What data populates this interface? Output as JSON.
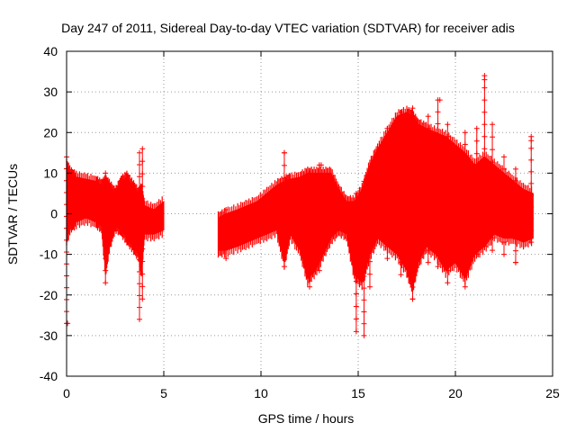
{
  "chart_data": {
    "type": "scatter",
    "title": "Day 247 of 2011, Sidereal Day-to-day VTEC variation (SDTVAR) for receiver adis",
    "xlabel": "GPS time / hours",
    "ylabel": "SDTVAR / TECUs",
    "xlim": [
      0,
      25
    ],
    "ylim": [
      -40,
      40
    ],
    "x_ticks": [
      0,
      5,
      10,
      15,
      20,
      25
    ],
    "y_ticks": [
      -40,
      -30,
      -20,
      -10,
      0,
      10,
      20,
      30,
      40
    ],
    "grid": true,
    "legend": "none",
    "marker": "plus",
    "series_color": "#ff0000",
    "envelope_segments": [
      {
        "name": "segment-1",
        "points": [
          {
            "x": 0.0,
            "lo": -6,
            "hi": 12
          },
          {
            "x": 0.2,
            "lo": -3,
            "hi": 10
          },
          {
            "x": 0.5,
            "lo": -2,
            "hi": 9
          },
          {
            "x": 1.0,
            "lo": -1,
            "hi": 8.5
          },
          {
            "x": 1.5,
            "lo": -2,
            "hi": 8
          },
          {
            "x": 1.8,
            "lo": -3,
            "hi": 7
          },
          {
            "x": 2.0,
            "lo": -14,
            "hi": 8
          },
          {
            "x": 2.2,
            "lo": -8,
            "hi": 7
          },
          {
            "x": 2.5,
            "lo": -3,
            "hi": 5
          },
          {
            "x": 2.8,
            "lo": -4,
            "hi": 8
          },
          {
            "x": 3.1,
            "lo": -6,
            "hi": 9
          },
          {
            "x": 3.4,
            "lo": -8,
            "hi": 7
          },
          {
            "x": 3.7,
            "lo": -10,
            "hi": 5
          },
          {
            "x": 3.85,
            "lo": -14,
            "hi": 6
          },
          {
            "x": 4.0,
            "lo": -5,
            "hi": 2
          },
          {
            "x": 4.5,
            "lo": -5,
            "hi": 1
          },
          {
            "x": 5.0,
            "lo": -4,
            "hi": 3
          }
        ]
      },
      {
        "name": "segment-2",
        "points": [
          {
            "x": 7.8,
            "lo": -9,
            "hi": -1
          },
          {
            "x": 8.2,
            "lo": -9,
            "hi": 0
          },
          {
            "x": 8.8,
            "lo": -8,
            "hi": 1
          },
          {
            "x": 9.3,
            "lo": -7,
            "hi": 2
          },
          {
            "x": 9.8,
            "lo": -6,
            "hi": 3
          },
          {
            "x": 10.3,
            "lo": -5,
            "hi": 5
          },
          {
            "x": 10.8,
            "lo": -4,
            "hi": 7
          },
          {
            "x": 11.2,
            "lo": -12,
            "hi": 8
          },
          {
            "x": 11.5,
            "lo": -5,
            "hi": 8.5
          },
          {
            "x": 12.0,
            "lo": -9,
            "hi": 9
          },
          {
            "x": 12.4,
            "lo": -16,
            "hi": 10
          },
          {
            "x": 12.8,
            "lo": -14,
            "hi": 10
          },
          {
            "x": 13.2,
            "lo": -10,
            "hi": 10
          },
          {
            "x": 13.6,
            "lo": -6,
            "hi": 10
          },
          {
            "x": 14.0,
            "lo": -4,
            "hi": 6
          },
          {
            "x": 14.4,
            "lo": -5,
            "hi": 3
          },
          {
            "x": 14.8,
            "lo": -15,
            "hi": 3
          },
          {
            "x": 15.2,
            "lo": -17,
            "hi": 6
          },
          {
            "x": 15.6,
            "lo": -10,
            "hi": 12
          },
          {
            "x": 16.0,
            "lo": -6,
            "hi": 16
          },
          {
            "x": 16.5,
            "lo": -8,
            "hi": 20
          },
          {
            "x": 17.0,
            "lo": -10,
            "hi": 24
          },
          {
            "x": 17.5,
            "lo": -14,
            "hi": 25
          },
          {
            "x": 17.8,
            "lo": -18,
            "hi": 24
          },
          {
            "x": 18.1,
            "lo": -12,
            "hi": 22
          },
          {
            "x": 18.5,
            "lo": -8,
            "hi": 21
          },
          {
            "x": 19.0,
            "lo": -10,
            "hi": 20
          },
          {
            "x": 19.5,
            "lo": -14,
            "hi": 19
          },
          {
            "x": 20.0,
            "lo": -12,
            "hi": 17
          },
          {
            "x": 20.5,
            "lo": -16,
            "hi": 15
          },
          {
            "x": 21.0,
            "lo": -10,
            "hi": 12
          },
          {
            "x": 21.5,
            "lo": -8,
            "hi": 14
          },
          {
            "x": 22.0,
            "lo": -5,
            "hi": 12
          },
          {
            "x": 22.5,
            "lo": -6,
            "hi": 10
          },
          {
            "x": 23.0,
            "lo": -6,
            "hi": 8
          },
          {
            "x": 23.5,
            "lo": -7,
            "hi": 6
          },
          {
            "x": 24.0,
            "lo": -6,
            "hi": 5
          }
        ]
      }
    ],
    "spikes": [
      {
        "x": 0.0,
        "lo": -27,
        "hi": 14
      },
      {
        "x": 2.0,
        "lo": -17,
        "hi": 10
      },
      {
        "x": 3.75,
        "lo": -26,
        "hi": 15
      },
      {
        "x": 3.9,
        "lo": -21,
        "hi": 16
      },
      {
        "x": 8.2,
        "lo": -11,
        "hi": 1
      },
      {
        "x": 11.2,
        "lo": -13,
        "hi": 15
      },
      {
        "x": 12.5,
        "lo": -18,
        "hi": 10
      },
      {
        "x": 13.0,
        "lo": -14,
        "hi": 12
      },
      {
        "x": 14.9,
        "lo": -29,
        "hi": 5
      },
      {
        "x": 15.3,
        "lo": -30,
        "hi": 8
      },
      {
        "x": 15.6,
        "lo": -18,
        "hi": 10
      },
      {
        "x": 16.5,
        "lo": -11,
        "hi": 21
      },
      {
        "x": 17.2,
        "lo": -15,
        "hi": 25
      },
      {
        "x": 17.8,
        "lo": -21,
        "hi": 26
      },
      {
        "x": 18.6,
        "lo": -12,
        "hi": 24
      },
      {
        "x": 19.1,
        "lo": -13,
        "hi": 28
      },
      {
        "x": 19.6,
        "lo": -17,
        "hi": 22
      },
      {
        "x": 20.5,
        "lo": -18,
        "hi": 20
      },
      {
        "x": 21.1,
        "lo": -10,
        "hi": 21
      },
      {
        "x": 21.5,
        "lo": -8,
        "hi": 34
      },
      {
        "x": 21.9,
        "lo": -9,
        "hi": 22
      },
      {
        "x": 22.5,
        "lo": -10,
        "hi": 14
      },
      {
        "x": 23.1,
        "lo": -12,
        "hi": 11
      },
      {
        "x": 23.9,
        "lo": -7,
        "hi": 19
      }
    ],
    "outliers": [
      {
        "x": 0.05,
        "y": -27
      },
      {
        "x": 11.2,
        "y": 15
      },
      {
        "x": 13.1,
        "y": 12
      },
      {
        "x": 15.8,
        "y": 11
      },
      {
        "x": 17.8,
        "y": -21
      },
      {
        "x": 19.2,
        "y": 28
      },
      {
        "x": 21.5,
        "y": 33
      },
      {
        "x": 23.1,
        "y": -12
      },
      {
        "x": 23.9,
        "y": 18
      }
    ]
  }
}
